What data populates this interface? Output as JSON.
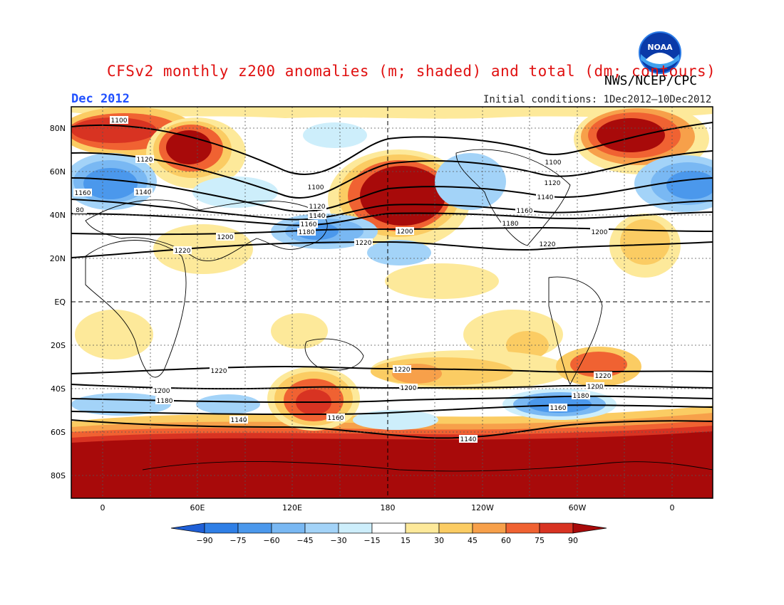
{
  "figure": {
    "title": "CFSv2 monthly z200 anomalies (m; shaded) and total (dm; contours)",
    "agency": "NWS/NCEP/CPC",
    "period": "Dec 2012",
    "initial_conditions": "Initial conditions: 1Dec2012–10Dec2012",
    "logo_text": "NOAA"
  },
  "map": {
    "projection": "cylindrical equidistant, centered on 180",
    "lat_axis_labels": [
      "80N",
      "60N",
      "40N",
      "20N",
      "EQ",
      "20S",
      "40S",
      "60S",
      "80S"
    ],
    "lon_axis_labels": [
      "0",
      "60E",
      "120E",
      "180",
      "120W",
      "60W",
      "0"
    ],
    "grid": "dotted at 20° lat / 30° lon; dashed at equator and 180",
    "contour_labels_dm": [
      "1100",
      "1100",
      "1120",
      "1120",
      "1120",
      "1140",
      "1140",
      "1140",
      "1140",
      "1140",
      "1160",
      "1160",
      "1160",
      "1160",
      "1160",
      "1180",
      "1180",
      "1180",
      "1180",
      "1200",
      "1200",
      "1200",
      "1200",
      "1200",
      "1200",
      "1220",
      "1220",
      "1220",
      "1220",
      "1220",
      "1220",
      "1100",
      "80"
    ],
    "anomaly_features": [
      {
        "name": "North Pacific high anomaly",
        "sign": "positive",
        "level": 90
      },
      {
        "name": "Scandinavian high anomaly",
        "sign": "positive",
        "level": 90
      },
      {
        "name": "North Atlantic / Greenland high anomaly",
        "sign": "positive",
        "level": 90
      },
      {
        "name": "Southern Ocean ring (60S–90S)",
        "sign": "positive",
        "level": 90
      },
      {
        "name": "Europe trough",
        "sign": "negative",
        "level": -60
      },
      {
        "name": "Japan / NW Pacific trough",
        "sign": "negative",
        "level": -60
      },
      {
        "name": "South Pacific trough (~55S, 70W)",
        "sign": "negative",
        "level": -60
      }
    ]
  },
  "colorbar": {
    "levels": [
      "−90",
      "−75",
      "−60",
      "−45",
      "−30",
      "−15",
      "15",
      "30",
      "45",
      "60",
      "75",
      "90"
    ],
    "colors": [
      "#1f5fd6",
      "#2f7fe6",
      "#4b98ec",
      "#79b8f3",
      "#a3d3f8",
      "#cdeefb",
      "#ffffff",
      "#fde99a",
      "#fbcc63",
      "#f7a04a",
      "#f06232",
      "#d83322",
      "#a80a0a"
    ]
  }
}
